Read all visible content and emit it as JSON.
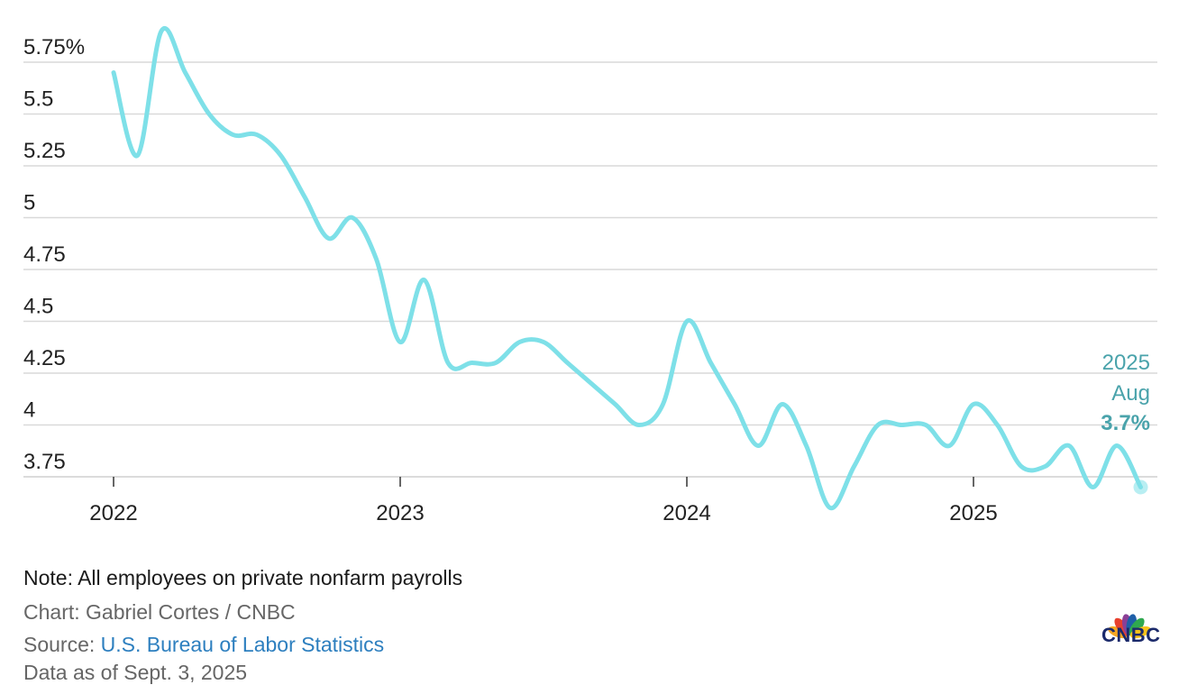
{
  "chart_data": {
    "type": "line",
    "x_ticks": [
      "2022",
      "2023",
      "2024",
      "2025"
    ],
    "y_ticks": [
      "5.75%",
      "5.5",
      "5.25",
      "5",
      "4.75",
      "4.5",
      "4.25",
      "4",
      "3.75"
    ],
    "ylim": [
      3.7,
      5.9
    ],
    "grid": "horizontal",
    "series": [
      {
        "color": "#7ee0e8",
        "x": [
          "2022-01",
          "2022-02",
          "2022-03",
          "2022-04",
          "2022-05",
          "2022-06",
          "2022-07",
          "2022-08",
          "2022-09",
          "2022-10",
          "2022-11",
          "2022-12",
          "2023-01",
          "2023-02",
          "2023-03",
          "2023-04",
          "2023-05",
          "2023-06",
          "2023-07",
          "2023-08",
          "2023-09",
          "2023-10",
          "2023-11",
          "2023-12",
          "2024-01",
          "2024-02",
          "2024-03",
          "2024-04",
          "2024-05",
          "2024-06",
          "2024-07",
          "2024-08",
          "2024-09",
          "2024-10",
          "2024-11",
          "2024-12",
          "2025-01",
          "2025-02",
          "2025-03",
          "2025-04",
          "2025-05",
          "2025-06",
          "2025-07",
          "2025-08"
        ],
        "values": [
          5.7,
          5.3,
          5.9,
          5.7,
          5.5,
          5.4,
          5.4,
          5.3,
          5.1,
          4.9,
          5.0,
          4.8,
          4.4,
          4.7,
          4.3,
          4.3,
          4.3,
          4.4,
          4.4,
          4.3,
          4.2,
          4.1,
          4.0,
          4.1,
          4.5,
          4.3,
          4.1,
          3.9,
          4.1,
          3.9,
          3.6,
          3.8,
          4.0,
          4.0,
          4.0,
          3.9,
          4.1,
          4.0,
          3.8,
          3.8,
          3.9,
          3.7,
          3.9,
          3.7
        ]
      }
    ],
    "annotation": {
      "year": "2025",
      "month": "Aug",
      "value": "3.7%",
      "color": "#4aa3ab"
    }
  },
  "footer": {
    "note": "Note: All employees on private nonfarm payrolls",
    "credit": "Chart: Gabriel Cortes / CNBC",
    "source_prefix": "Source: ",
    "source_link": "U.S. Bureau of Labor Statistics",
    "asof": "Data as of Sept. 3, 2025"
  },
  "logo": {
    "text": "CNBC",
    "colors": [
      "#f5a623",
      "#e8402e",
      "#8b3f96",
      "#1f5fa8",
      "#2fa84f",
      "#f7c21a"
    ]
  }
}
